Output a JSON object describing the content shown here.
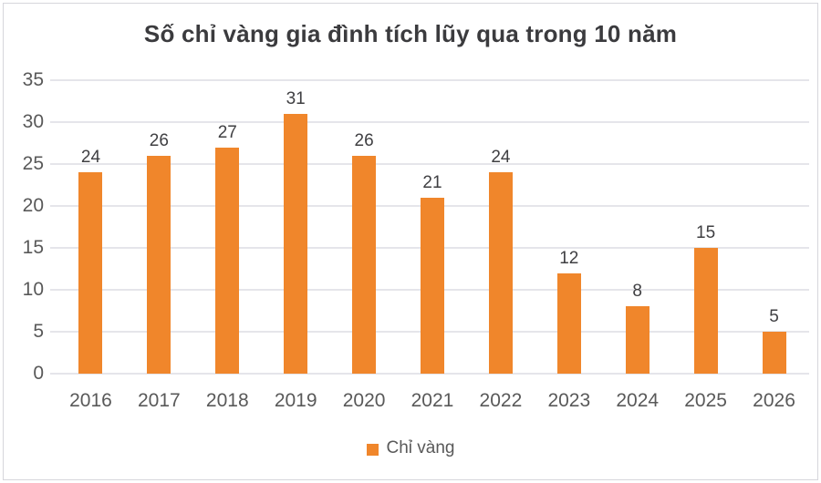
{
  "title": "Số chỉ vàng gia đình tích lũy qua trong 10 năm",
  "legend": {
    "label": "Chỉ vàng",
    "swatch_color": "#F0862B"
  },
  "chart_data": {
    "type": "bar",
    "title": "Số chỉ vàng gia đình tích lũy qua trong 10 năm",
    "categories": [
      "2016",
      "2017",
      "2018",
      "2019",
      "2020",
      "2021",
      "2022",
      "2023",
      "2024",
      "2025",
      "2026"
    ],
    "values": [
      24,
      26,
      27,
      31,
      26,
      21,
      24,
      12,
      8,
      15,
      5
    ],
    "series": [
      {
        "name": "Chỉ vàng",
        "values": [
          24,
          26,
          27,
          31,
          26,
          21,
          24,
          12,
          8,
          15,
          5
        ]
      }
    ],
    "xlabel": "",
    "ylabel": "",
    "ylim": [
      0,
      35
    ],
    "yticks": [
      0,
      5,
      10,
      15,
      20,
      25,
      30,
      35
    ],
    "grid": true,
    "data_labels": true,
    "legend_position": "bottom",
    "bar_color": "#F0862B"
  },
  "colors": {
    "bar": "#F0862B",
    "title_text": "#3B3B3E",
    "axis_text": "#595959",
    "data_label_text": "#3F3F42",
    "gridline": "#E5E5EA",
    "frame_border": "#D6D6DC",
    "background": "#FFFFFF"
  }
}
